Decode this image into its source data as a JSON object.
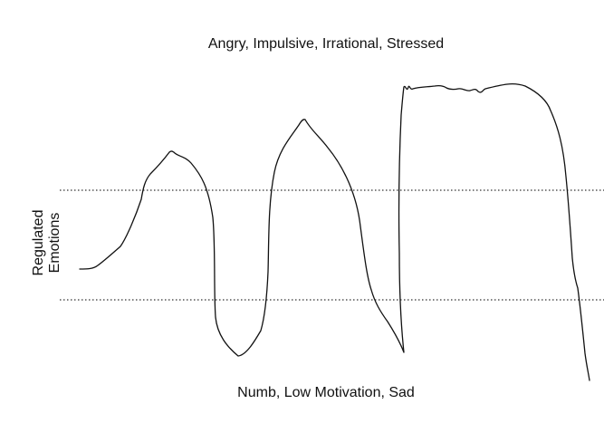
{
  "labels": {
    "top": "Angry, Impulsive, Irrational, Stressed",
    "bottom": "Numb, Low Motivation, Sad",
    "side_line1": "Regulated",
    "side_line2": "Emotions"
  },
  "colors": {
    "line": "#111111",
    "band": "#333333",
    "background": "#ffffff"
  }
}
